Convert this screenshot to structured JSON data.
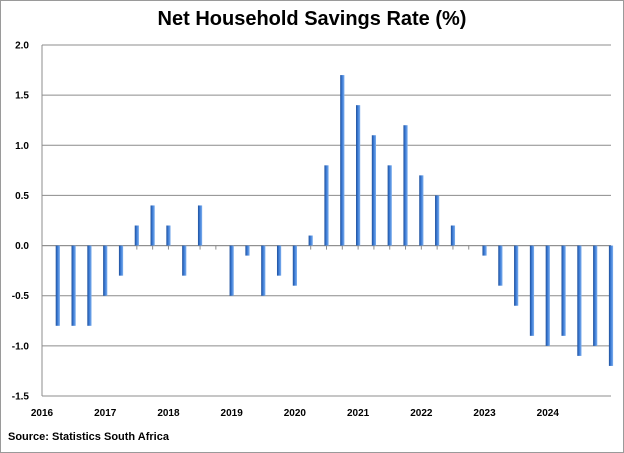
{
  "chart_data": {
    "type": "bar",
    "title": "Net Household Savings Rate (%)",
    "source": "Source: Statistics South Africa",
    "xlabel": "",
    "ylabel": "",
    "ylim": [
      -1.5,
      2.0
    ],
    "yticks": [
      "2.0",
      "1.5",
      "1.0",
      "0.5",
      "0.0",
      "-0.5",
      "-1.0",
      "-1.5"
    ],
    "ytick_values": [
      2.0,
      1.5,
      1.0,
      0.5,
      0.0,
      -0.5,
      -1.0,
      -1.5
    ],
    "xticks": [
      "2016",
      "2017",
      "2018",
      "2019",
      "2020",
      "2021",
      "2022",
      "2023",
      "2024"
    ],
    "grid": "horizontal",
    "bar_color": "#3b7bd6",
    "categories": [
      "2016Q1",
      "2016Q2",
      "2016Q3",
      "2016Q4",
      "2017Q1",
      "2017Q2",
      "2017Q3",
      "2017Q4",
      "2018Q1",
      "2018Q2",
      "2018Q3",
      "2018Q4",
      "2019Q1",
      "2019Q2",
      "2019Q3",
      "2019Q4",
      "2020Q1",
      "2020Q2",
      "2020Q3",
      "2020Q4",
      "2021Q1",
      "2021Q2",
      "2021Q3",
      "2021Q4",
      "2022Q1",
      "2022Q2",
      "2022Q3",
      "2022Q4",
      "2023Q1",
      "2023Q2",
      "2023Q3",
      "2023Q4",
      "2024Q1",
      "2024Q2",
      "2024Q3",
      "2024Q4"
    ],
    "values": [
      -0.8,
      -0.8,
      -0.8,
      -0.5,
      -0.3,
      0.2,
      0.4,
      0.2,
      -0.3,
      0.4,
      0.0,
      -0.5,
      -0.1,
      -0.5,
      -0.3,
      -0.4,
      0.1,
      0.8,
      1.7,
      1.4,
      1.1,
      0.8,
      1.2,
      0.7,
      0.5,
      0.2,
      0.0,
      -0.1,
      -0.4,
      -0.6,
      -0.9,
      -1.0,
      -0.9,
      -1.1,
      -1.0,
      -1.2
    ]
  }
}
